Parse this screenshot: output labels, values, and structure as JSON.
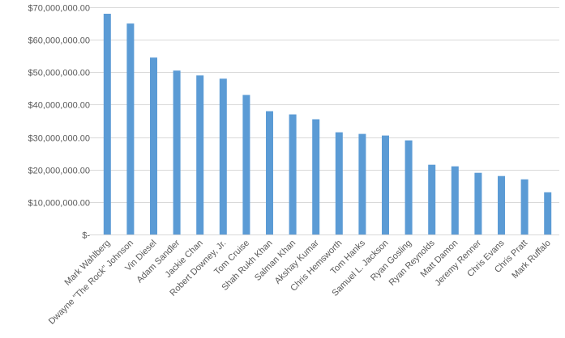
{
  "chart_data": {
    "type": "bar",
    "title": "",
    "xlabel": "",
    "ylabel": "",
    "ylim": [
      0,
      70000000
    ],
    "grid": true,
    "legend": "none",
    "bar_color": "#5b9bd5",
    "y_ticks": [
      {
        "value": 70000000,
        "label": "$70,000,000.00"
      },
      {
        "value": 60000000,
        "label": "$60,000,000.00"
      },
      {
        "value": 50000000,
        "label": "$50,000,000.00"
      },
      {
        "value": 40000000,
        "label": "$40,000,000.00"
      },
      {
        "value": 30000000,
        "label": "$30,000,000.00"
      },
      {
        "value": 20000000,
        "label": "$20,000,000.00"
      },
      {
        "value": 10000000,
        "label": "$10,000,000.00"
      },
      {
        "value": 0,
        "label": "$-"
      }
    ],
    "categories": [
      "Mark Wahlberg",
      "Dwayne \"The Rock\" Johnson",
      "Vin Diesel",
      "Adam Sandler",
      "Jackie Chan",
      "Robert Downey, Jr.",
      "Tom Cruise",
      "Shah Rukh Khan",
      "Salman Khan",
      "Akshay Kumar",
      "Chris Hemsworth",
      "Tom Hanks",
      "Samuel L. Jackson",
      "Ryan Gosling",
      "Ryan Reynolds",
      "Matt Damon",
      "Jeremy Renner",
      "Chris Evans",
      "Chris Pratt",
      "Mark Ruffalo"
    ],
    "values": [
      68000000,
      65000000,
      54500000,
      50500000,
      49000000,
      48000000,
      43000000,
      38000000,
      37000000,
      35500000,
      31500000,
      31000000,
      30500000,
      29000000,
      21500000,
      21000000,
      19000000,
      18000000,
      17000000,
      13000000
    ]
  }
}
